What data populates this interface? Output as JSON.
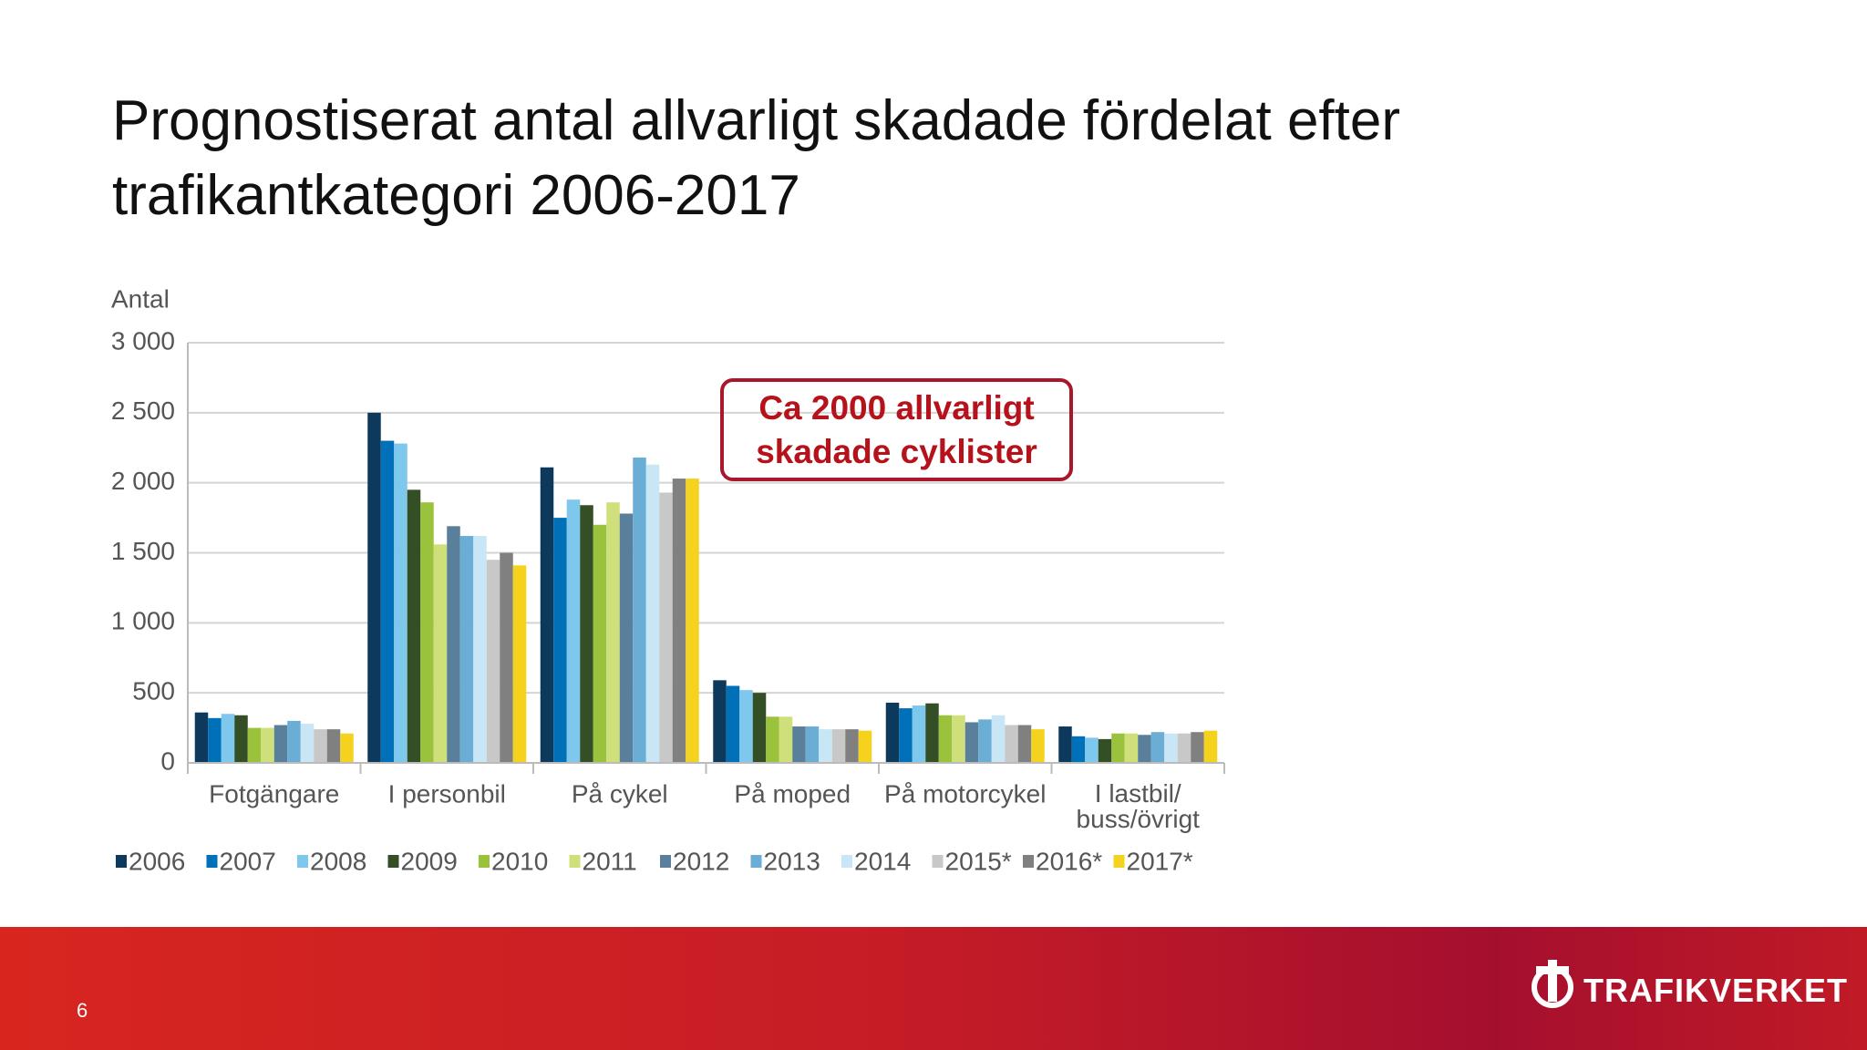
{
  "title": "Prognostiserat antal allvarligt skadade fördelat efter trafikantkategori 2006-2017",
  "chart_data": {
    "type": "bar",
    "y_label": "Antal",
    "categories": [
      "Fotgängare",
      "I personbil",
      "På cykel",
      "På moped",
      "På motorcykel",
      "I lastbil/\nbuss/övrigt"
    ],
    "ylim": [
      0,
      3000
    ],
    "yticks": [
      0,
      500,
      {
        "value": 1000,
        "label": "1 000"
      },
      {
        "value": 1500,
        "label": "1 500"
      },
      {
        "value": 2000,
        "label": "2 000"
      },
      {
        "value": 2500,
        "label": "2 500"
      },
      {
        "value": 3000,
        "label": "3 000"
      }
    ],
    "grid": true,
    "series": [
      {
        "name": "2006",
        "color": "#0d3a5c",
        "values": [
          360,
          2500,
          2110,
          590,
          430,
          260
        ]
      },
      {
        "name": "2007",
        "color": "#0070b8",
        "values": [
          320,
          2300,
          1750,
          550,
          390,
          190
        ]
      },
      {
        "name": "2008",
        "color": "#7ec8ee",
        "values": [
          350,
          2280,
          1880,
          520,
          410,
          180
        ]
      },
      {
        "name": "2009",
        "color": "#344f25",
        "values": [
          340,
          1950,
          1840,
          500,
          425,
          170
        ]
      },
      {
        "name": "2010",
        "color": "#9bc23c",
        "values": [
          250,
          1860,
          1700,
          330,
          340,
          210
        ]
      },
      {
        "name": "2011",
        "color": "#cfe07a",
        "values": [
          250,
          1560,
          1860,
          330,
          340,
          210
        ]
      },
      {
        "name": "2012",
        "color": "#5a7f9a",
        "values": [
          270,
          1690,
          1780,
          260,
          290,
          200
        ]
      },
      {
        "name": "2013",
        "color": "#6aaed6",
        "values": [
          300,
          1620,
          2180,
          260,
          310,
          220
        ]
      },
      {
        "name": "2014",
        "color": "#c8e6f5",
        "values": [
          280,
          1620,
          2130,
          240,
          340,
          210
        ]
      },
      {
        "name": "2015*",
        "color": "#c8c8c8",
        "values": [
          240,
          1450,
          1930,
          240,
          270,
          210
        ]
      },
      {
        "name": "2016*",
        "color": "#808080",
        "values": [
          240,
          1500,
          2030,
          240,
          270,
          220
        ]
      },
      {
        "name": "2017*",
        "color": "#f5d21e",
        "values": [
          210,
          1410,
          2030,
          230,
          240,
          230
        ]
      }
    ],
    "annotation": "Ca 2000 allvarligt skadade cyklister"
  },
  "footer": {
    "page_number": "6",
    "logo": "TRAFIKVERKET"
  }
}
